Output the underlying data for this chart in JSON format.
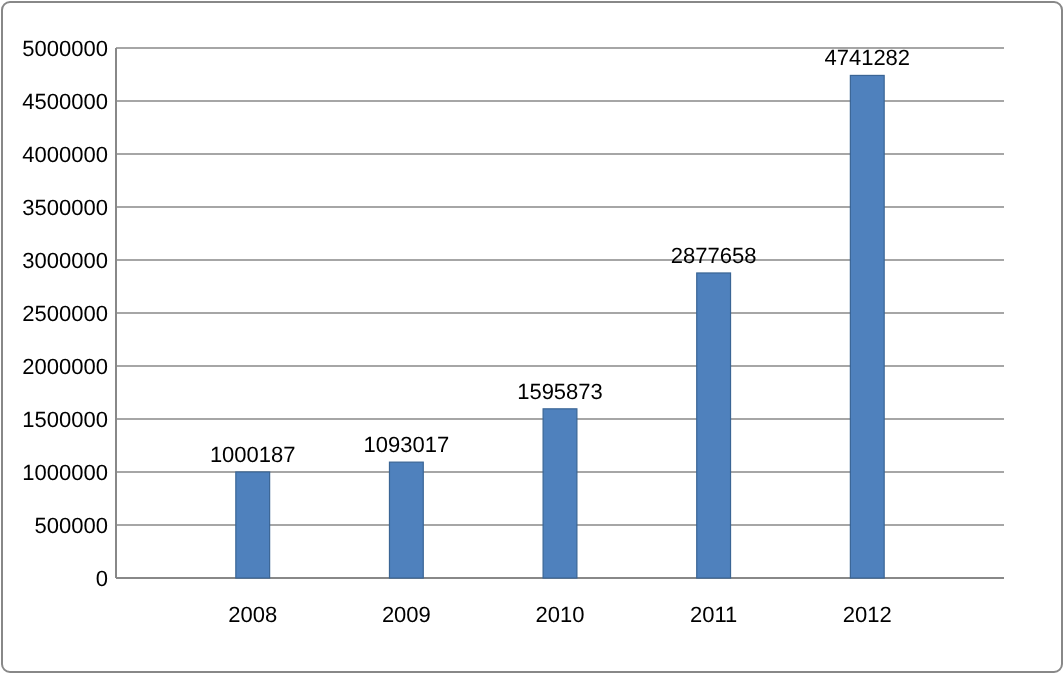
{
  "chart_data": {
    "type": "bar",
    "categories": [
      "2008",
      "2009",
      "2010",
      "2011",
      "2012"
    ],
    "values": [
      1000187,
      1093017,
      1595873,
      2877658,
      4741282
    ],
    "color": "#4f81bd",
    "ylim": [
      0,
      5000000
    ],
    "yticks": [
      0,
      500000,
      1000000,
      1500000,
      2000000,
      2500000,
      3000000,
      3500000,
      4000000,
      4500000,
      5000000
    ],
    "grid": "y",
    "data_labels": true
  }
}
